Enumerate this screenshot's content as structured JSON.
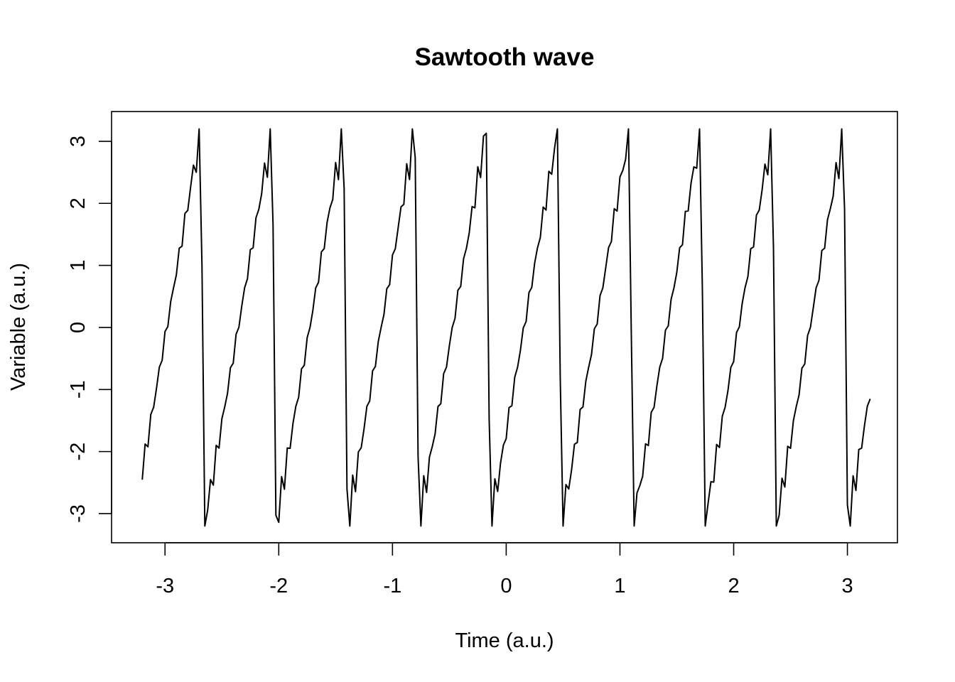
{
  "chart_data": {
    "type": "line",
    "title": "Sawtooth wave",
    "xlabel": "Time (a.u.)",
    "ylabel": "Variable (a.u.)",
    "xlim": [
      -3.47,
      3.44
    ],
    "ylim": [
      -3.47,
      3.48
    ],
    "x_ticks": [
      {
        "value": -3,
        "label": "-3"
      },
      {
        "value": -2,
        "label": "-2"
      },
      {
        "value": -1,
        "label": "-1"
      },
      {
        "value": 0,
        "label": "0"
      },
      {
        "value": 1,
        "label": "1"
      },
      {
        "value": 2,
        "label": "2"
      },
      {
        "value": 3,
        "label": "3"
      }
    ],
    "y_ticks": [
      {
        "value": -3,
        "label": "-3"
      },
      {
        "value": -2,
        "label": "-2"
      },
      {
        "value": -1,
        "label": "-1"
      },
      {
        "value": 0,
        "label": "0"
      },
      {
        "value": 1,
        "label": "1"
      },
      {
        "value": 2,
        "label": "2"
      },
      {
        "value": 3,
        "label": "3"
      }
    ],
    "grid": false,
    "legend": "none",
    "series": [
      {
        "color": "#000000",
        "description": "Sawtooth-like signal of 10 periods over x in [-3.2, 3.2], sampled at step 0.025, rising from about -3.2 to about 3.2 with small stair-step ripples then dropping sharply",
        "x_start": -3.2,
        "x_end": 3.2,
        "x_step": 0.025,
        "period": 0.6283,
        "amplitude": 3.2,
        "harmonics": 10
      }
    ]
  }
}
